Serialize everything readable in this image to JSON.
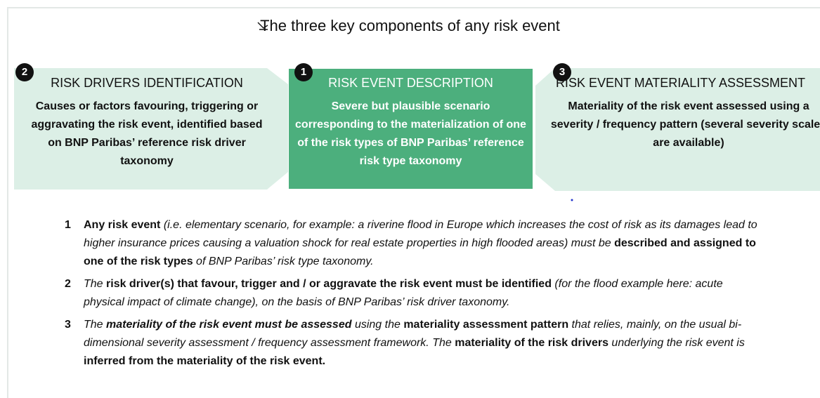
{
  "title": "The three key components of any risk event",
  "boxes": [
    {
      "number": "2",
      "heading": "RISK DRIVERS IDENTIFICATION",
      "text": "Causes or factors favouring, triggering or aggravating the risk event, identified based on BNP Paribas’ reference risk driver taxonomy"
    },
    {
      "number": "1",
      "heading": "RISK EVENT DESCRIPTION",
      "text": "Severe but plausible scenario corresponding to the materialization of one of the risk types of BNP Paribas’ reference risk type taxonomy"
    },
    {
      "number": "3",
      "heading": "RISK EVENT MATERIALITY ASSESSMENT",
      "text": "Materiality of the risk event assessed using a severity / frequency pattern (several severity scales are available)"
    }
  ],
  "items": [
    {
      "number": "1",
      "runs": [
        {
          "text": "Any risk event",
          "style": "bold"
        },
        {
          "text": " (i.e. elementary scenario, for example: a riverine flood in Europe which increases the cost of risk as its damages lead to higher insurance prices causing a valuation shock for real estate properties in high flooded areas) must be ",
          "style": "italic"
        },
        {
          "text": "described and assigned to one of the risk types",
          "style": "bold"
        },
        {
          "text": " of BNP Paribas’ risk type taxonomy.",
          "style": "italic"
        }
      ]
    },
    {
      "number": "2",
      "runs": [
        {
          "text": "The ",
          "style": "italic"
        },
        {
          "text": "risk driver(s) that favour, trigger and / or aggravate the risk event must be identified",
          "style": "bold"
        },
        {
          "text": " (for the flood example here: acute physical impact of climate change), on the basis of BNP Paribas’ risk driver taxonomy.",
          "style": "italic"
        }
      ]
    },
    {
      "number": "3",
      "runs": [
        {
          "text": "The ",
          "style": "italic"
        },
        {
          "text": "materiality of the risk event must be assessed",
          "style": "bold-italic"
        },
        {
          "text": " using the ",
          "style": "italic"
        },
        {
          "text": "materiality assessment pattern",
          "style": "bold"
        },
        {
          "text": " that relies, mainly, on the usual bi-dimensional severity assessment / frequency assessment framework. The ",
          "style": "italic"
        },
        {
          "text": "materiality of the risk drivers",
          "style": "bold"
        },
        {
          "text": " underlying the risk event is ",
          "style": "italic"
        },
        {
          "text": "inferred from the materiality of the risk event.",
          "style": "bold"
        }
      ]
    }
  ]
}
